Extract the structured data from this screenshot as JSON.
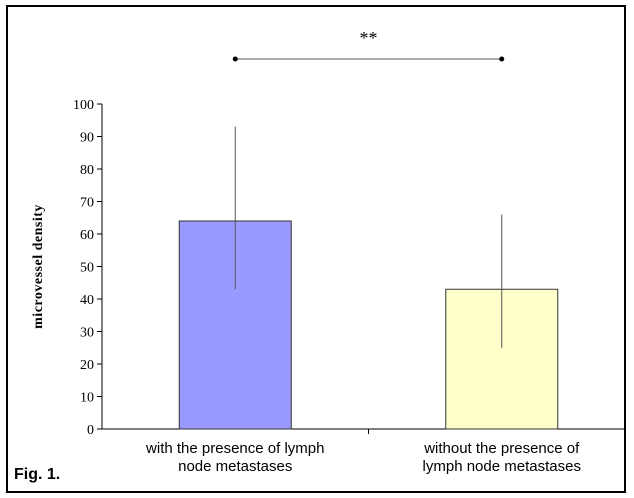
{
  "figure_label": "Fig. 1.",
  "chart_data": {
    "type": "bar",
    "categories": [
      [
        "with the presence of lymph",
        "node metastases"
      ],
      [
        "without the presence of",
        "lymph node metastases"
      ]
    ],
    "values": [
      64,
      43
    ],
    "error_bars": [
      {
        "low": 43,
        "high": 93
      },
      {
        "low": 25,
        "high": 66
      }
    ],
    "bar_colors": [
      "#9999ff",
      "#ffffcc"
    ],
    "ylabel": "microvessel density",
    "ylim": [
      0,
      100
    ],
    "yticks": [
      0,
      10,
      20,
      30,
      40,
      50,
      60,
      70,
      80,
      90,
      100
    ],
    "significance": "**",
    "grid": false
  }
}
